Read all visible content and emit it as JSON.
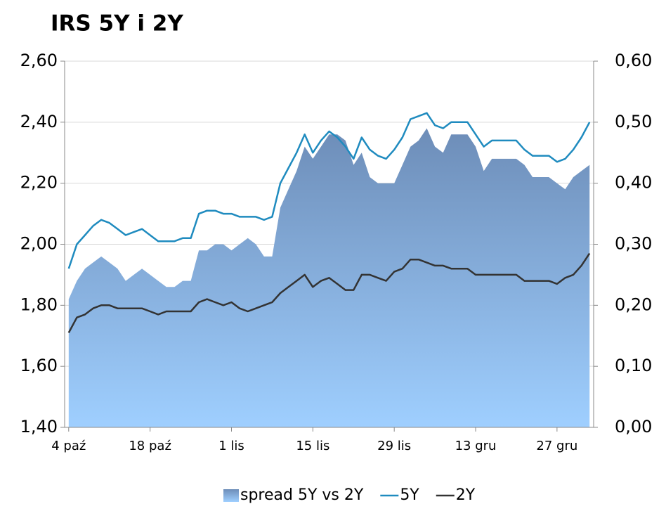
{
  "chart_data": {
    "type": "area-line",
    "title": "IRS 5Y i 2Y",
    "categories": [
      "4 paź",
      null,
      null,
      null,
      null,
      null,
      null,
      null,
      null,
      null,
      "18 paź",
      null,
      null,
      null,
      null,
      null,
      null,
      null,
      null,
      null,
      "1 lis",
      null,
      null,
      null,
      null,
      null,
      null,
      null,
      null,
      null,
      "15 lis",
      null,
      null,
      null,
      null,
      null,
      null,
      null,
      null,
      null,
      "29 lis",
      null,
      null,
      null,
      null,
      null,
      null,
      null,
      null,
      null,
      "13 gru",
      null,
      null,
      null,
      null,
      null,
      null,
      null,
      null,
      null,
      "27 gru",
      null,
      null,
      null,
      null
    ],
    "series": [
      {
        "name": "spread 5Y vs 2Y",
        "kind": "area",
        "axis": "y2",
        "color": "#7fa3cf",
        "values": [
          0.21,
          0.24,
          0.26,
          0.27,
          0.28,
          0.27,
          0.26,
          0.24,
          0.25,
          0.26,
          0.25,
          0.24,
          0.23,
          0.23,
          0.24,
          0.24,
          0.29,
          0.29,
          0.3,
          0.3,
          0.29,
          0.3,
          0.31,
          0.3,
          0.28,
          0.28,
          0.36,
          0.39,
          0.42,
          0.46,
          0.44,
          0.46,
          0.48,
          0.48,
          0.47,
          0.43,
          0.45,
          0.41,
          0.4,
          0.4,
          0.4,
          0.43,
          0.46,
          0.47,
          0.49,
          0.46,
          0.45,
          0.48,
          0.48,
          0.48,
          0.46,
          0.42,
          0.44,
          0.44,
          0.44,
          0.44,
          0.43,
          0.41,
          0.41,
          0.41,
          0.4,
          0.39,
          0.41,
          0.42,
          0.43
        ]
      },
      {
        "name": "5Y",
        "kind": "line",
        "color": "#1f8bbf",
        "values": [
          1.92,
          2.0,
          2.03,
          2.06,
          2.08,
          2.07,
          2.05,
          2.03,
          2.04,
          2.05,
          2.03,
          2.01,
          2.01,
          2.01,
          2.02,
          2.02,
          2.1,
          2.11,
          2.11,
          2.1,
          2.1,
          2.09,
          2.09,
          2.09,
          2.08,
          2.09,
          2.2,
          2.25,
          2.3,
          2.36,
          2.3,
          2.34,
          2.37,
          2.35,
          2.32,
          2.28,
          2.35,
          2.31,
          2.29,
          2.28,
          2.31,
          2.35,
          2.41,
          2.42,
          2.43,
          2.39,
          2.38,
          2.4,
          2.4,
          2.4,
          2.36,
          2.32,
          2.34,
          2.34,
          2.34,
          2.34,
          2.31,
          2.29,
          2.29,
          2.29,
          2.27,
          2.28,
          2.31,
          2.35,
          2.4
        ]
      },
      {
        "name": "2Y",
        "kind": "line",
        "color": "#333333",
        "values": [
          1.71,
          1.76,
          1.77,
          1.79,
          1.8,
          1.8,
          1.79,
          1.79,
          1.79,
          1.79,
          1.78,
          1.77,
          1.78,
          1.78,
          1.78,
          1.78,
          1.81,
          1.82,
          1.81,
          1.8,
          1.81,
          1.79,
          1.78,
          1.79,
          1.8,
          1.81,
          1.84,
          1.86,
          1.88,
          1.9,
          1.86,
          1.88,
          1.89,
          1.87,
          1.85,
          1.85,
          1.9,
          1.9,
          1.89,
          1.88,
          1.91,
          1.92,
          1.95,
          1.95,
          1.94,
          1.93,
          1.93,
          1.92,
          1.92,
          1.92,
          1.9,
          1.9,
          1.9,
          1.9,
          1.9,
          1.9,
          1.88,
          1.88,
          1.88,
          1.88,
          1.87,
          1.89,
          1.9,
          1.93,
          1.97
        ]
      }
    ],
    "ylim": [
      1.4,
      2.6
    ],
    "yticks": [
      {
        "value": 1.4,
        "label": "1,40"
      },
      {
        "value": 1.6,
        "label": "1,60"
      },
      {
        "value": 1.8,
        "label": "1,80"
      },
      {
        "value": 2.0,
        "label": "2,00"
      },
      {
        "value": 2.2,
        "label": "2,20"
      },
      {
        "value": 2.4,
        "label": "2,40"
      },
      {
        "value": 2.6,
        "label": "2,60"
      }
    ],
    "y2lim": [
      0,
      0.6
    ],
    "y2ticks": [
      {
        "value": 0,
        "label": "0,00"
      },
      {
        "value": 0.1,
        "label": "0,10"
      },
      {
        "value": 0.2,
        "label": "0,20"
      },
      {
        "value": 0.3,
        "label": "0,30"
      },
      {
        "value": 0.4,
        "label": "0,40"
      },
      {
        "value": 0.5,
        "label": "0,50"
      },
      {
        "value": 0.6,
        "label": "0,60"
      }
    ],
    "grid": true,
    "legend": "bottom"
  }
}
